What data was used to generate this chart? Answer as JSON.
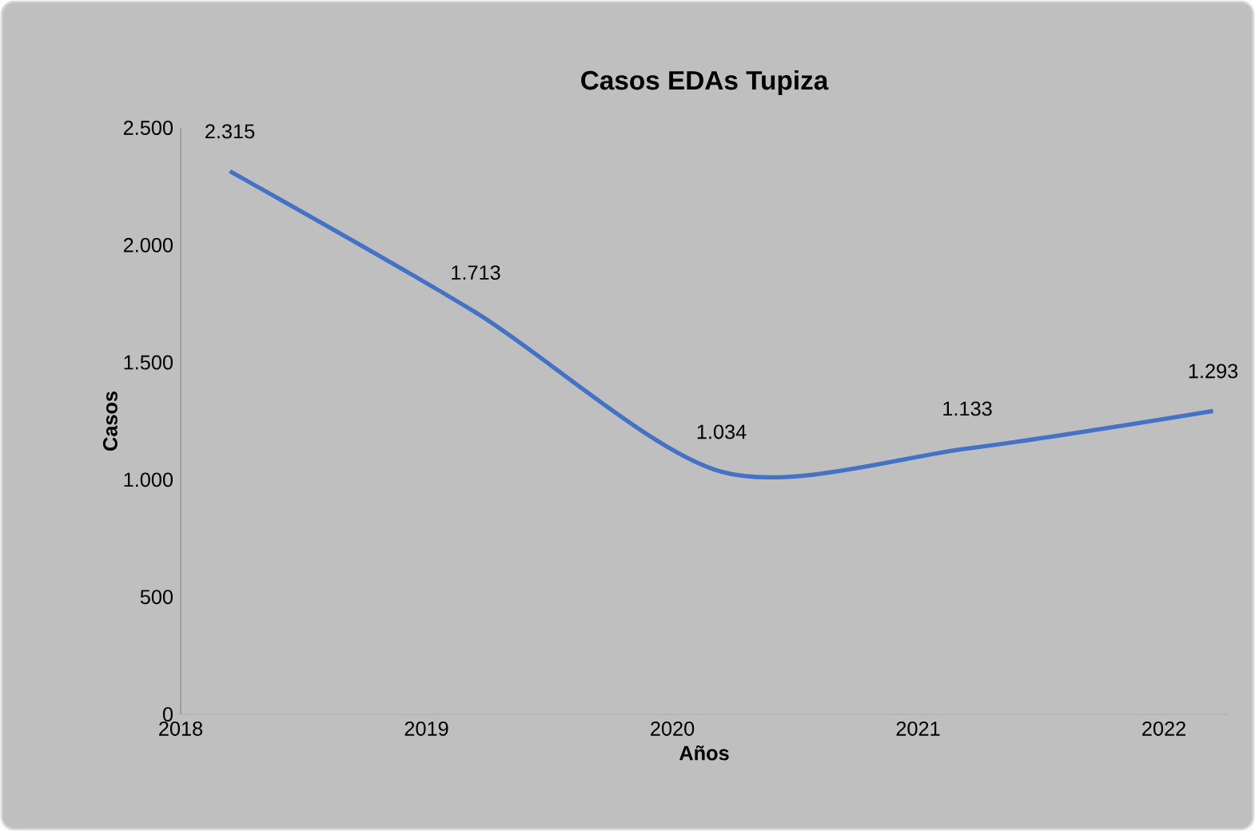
{
  "chart_data": {
    "type": "line",
    "title": "Casos EDAs Tupiza",
    "xlabel": "Años",
    "ylabel": "Casos",
    "x": [
      2018.2,
      2019.2,
      2020.2,
      2021.2,
      2022.2
    ],
    "series": [
      {
        "color": "#4472c4",
        "values": [
          2315,
          1713,
          1034,
          1133,
          1293
        ],
        "value_labels": [
          "2.315",
          "1.713",
          "1.034",
          "1.133",
          "1.293"
        ]
      }
    ],
    "xlim": [
      2018,
      2022.26
    ],
    "xticks": [
      2018,
      2019,
      2020,
      2021,
      2022
    ],
    "ylim": [
      0,
      2500
    ],
    "yticks": [
      {
        "value": 0,
        "label": "0"
      },
      {
        "value": 500,
        "label": "500"
      },
      {
        "value": 1000,
        "label": "1.000"
      },
      {
        "value": 1500,
        "label": "1.500"
      },
      {
        "value": 2000,
        "label": "2.000"
      },
      {
        "value": 2500,
        "label": "2.500"
      }
    ],
    "marker": "none",
    "line_style": "solid"
  }
}
